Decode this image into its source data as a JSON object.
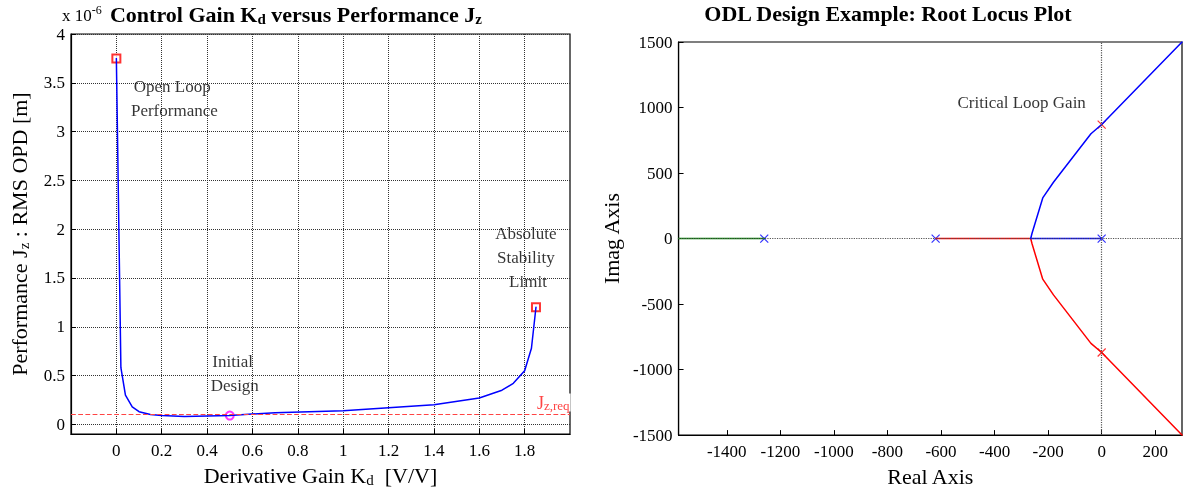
{
  "chart_data": [
    {
      "type": "line",
      "title": "Control Gain K$_{d}$ versus Performance J$_{z}$",
      "xlabel": "Derivative Gain K$_{d}$  [V/V]",
      "ylabel": "Performance J$_{z}$ : RMS OPD [m]",
      "xlim": [
        -0.2,
        2.0
      ],
      "xticks": [
        0,
        0.2,
        0.4,
        0.6,
        0.8,
        1,
        1.2,
        1.4,
        1.6,
        1.8
      ],
      "ylim": [
        -0.1,
        4
      ],
      "yticks": [
        0,
        0.5,
        1,
        1.5,
        2,
        2.5,
        3,
        3.5,
        4
      ],
      "grid": true,
      "marker": "none",
      "line_style": "solid",
      "series": [
        {
          "color": "#0000ff",
          "x": [
            0,
            0.02,
            0.04,
            0.07,
            0.1,
            0.15,
            0.2,
            0.3,
            0.5,
            0.7,
            1.0,
            1.2,
            1.4,
            1.6,
            1.7,
            1.75,
            1.8,
            1.83,
            1.85
          ],
          "values": [
            3.75,
            0.58,
            0.3,
            0.18,
            0.13,
            0.1,
            0.09,
            0.08,
            0.09,
            0.12,
            0.14,
            0.17,
            0.2,
            0.27,
            0.35,
            0.42,
            0.55,
            0.78,
            1.2
          ]
        },
        {
          "type": "scatter",
          "color": "#ff0000",
          "marker": "square",
          "x": [
            0,
            1.85
          ],
          "values": [
            3.75,
            1.2
          ]
        },
        {
          "type": "scatter",
          "color": "#ff00ff",
          "marker": "circle",
          "x": [
            0.5
          ],
          "values": [
            0.09
          ]
        }
      ],
      "ref_lines": [
        {
          "axis": "y",
          "value": 0.1,
          "label": "J$_{z,req}$",
          "color": "#ff4444",
          "line_style": "dashed"
        }
      ],
      "annotations": [
        "x 10$^{-6}$",
        {
          "text": "Open Loop Performance",
          "x": 0,
          "y": 3.75
        },
        {
          "text": "Initial Design",
          "x": 0.5,
          "y": 0.09
        },
        {
          "text": "Absolute Stability Limit",
          "x": 1.85,
          "y": 1.2
        }
      ]
    },
    {
      "type": "line",
      "title": "ODL Design Example: Root Locus Plot",
      "xlabel": "Real Axis",
      "ylabel": "Imag Axis",
      "xlim": [
        -1580,
        300
      ],
      "xticks": [
        -1400,
        -1200,
        -1000,
        -800,
        -600,
        -400,
        -200,
        0,
        200
      ],
      "ylim": [
        -1500,
        1500
      ],
      "yticks": [
        -1500,
        -1000,
        -500,
        0,
        500,
        1000,
        1500
      ],
      "grid": false,
      "marker": "none",
      "line_style": "solid",
      "series": [
        {
          "color": "#008000",
          "x": [
            -1580,
            -1260
          ],
          "values": [
            0,
            0
          ]
        },
        {
          "color": "#ff0000",
          "x": [
            -620,
            -265,
            -260,
            -220,
            -180,
            -40,
            0,
            300
          ],
          "values": [
            0,
            0,
            -40,
            -310,
            -430,
            -800,
            -870,
            -1500
          ]
        },
        {
          "color": "#0000ff",
          "x": [
            0,
            -265,
            -260,
            -220,
            -180,
            -40,
            0,
            300
          ],
          "values": [
            0,
            0,
            40,
            310,
            430,
            800,
            870,
            1500
          ]
        },
        {
          "type": "scatter",
          "color": "#0000ff",
          "marker": "cross",
          "x": [
            -1260,
            -620,
            0
          ],
          "values": [
            0,
            0,
            0
          ]
        },
        {
          "type": "scatter",
          "color": "#ff0000",
          "marker": "cross",
          "x": [
            0,
            0
          ],
          "values": [
            870,
            -870
          ]
        }
      ],
      "ref_lines": [
        {
          "axis": "x",
          "value": 0,
          "color": "#555555",
          "line_style": "dotted"
        },
        {
          "axis": "y",
          "value": 0,
          "color": "#555555",
          "line_style": "dotted"
        }
      ],
      "annotations": [
        {
          "text": "Critical Loop Gain",
          "x": 0,
          "y": 870
        }
      ]
    }
  ]
}
